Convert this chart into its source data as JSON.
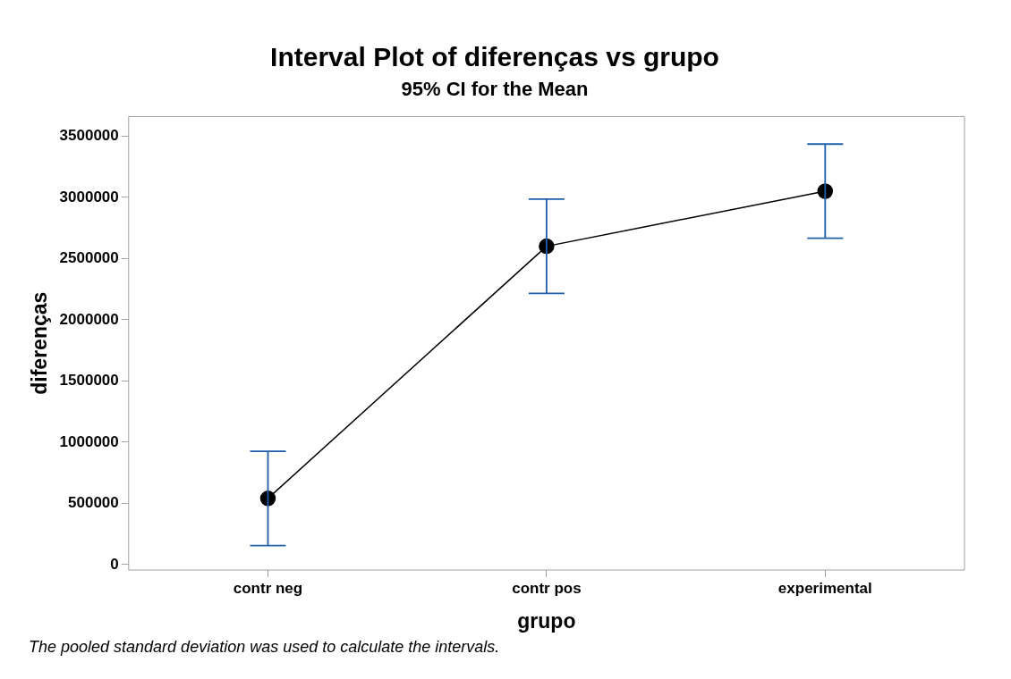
{
  "chart_data": {
    "type": "line",
    "title": "Interval Plot of diferenças vs grupo",
    "subtitle": "95% CI for the Mean",
    "xlabel": "grupo",
    "ylabel": "diferenças",
    "annotations": [
      "The pooled standard deviation was used to calculate the intervals."
    ],
    "categories": [
      "contr neg",
      "contr pos",
      "experimental"
    ],
    "series": [
      {
        "color": "#000000",
        "values": [
          540000,
          2600000,
          3050000
        ],
        "errors": [
          385000,
          385000,
          385000
        ]
      }
    ],
    "ylim": [
      -45000,
      3660000
    ],
    "yticks": [
      0,
      500000,
      1000000,
      1500000,
      2000000,
      2500000,
      3000000,
      3500000
    ],
    "grid": false,
    "legend": false,
    "marker": "circle",
    "line_style": "solid"
  }
}
